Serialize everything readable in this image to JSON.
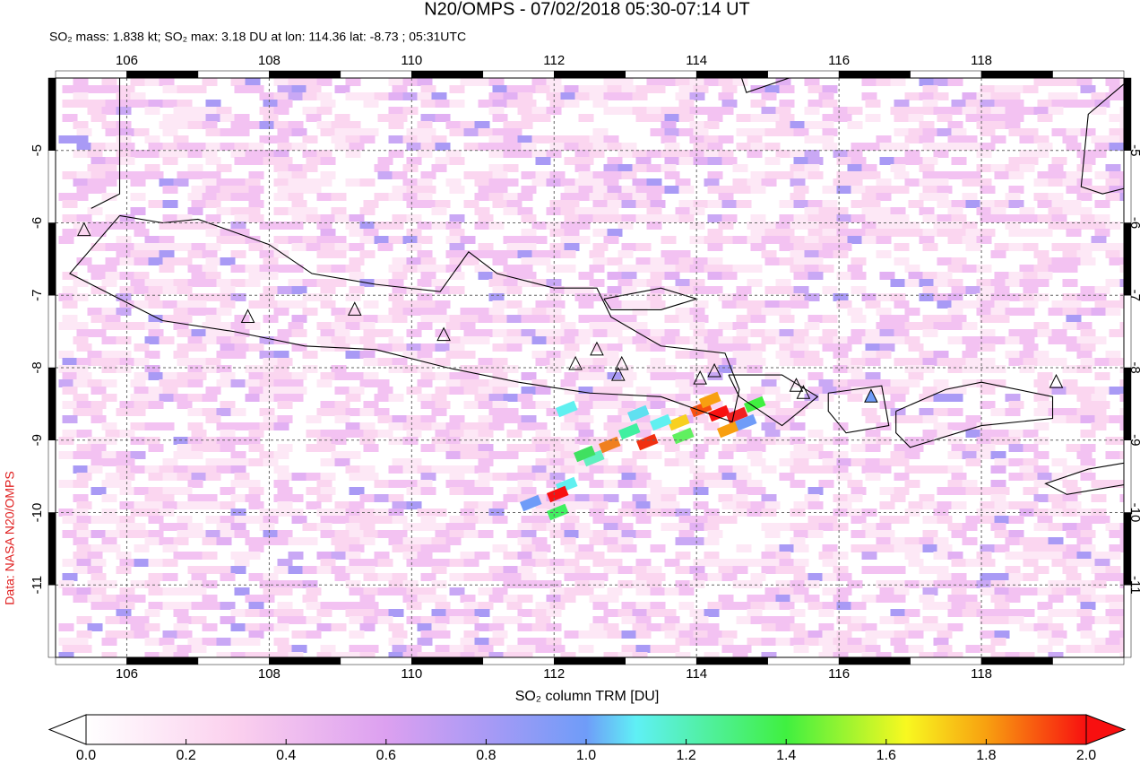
{
  "chart_data": {
    "type": "map",
    "title": "N20/OMPS - 07/02/2018 05:30-07:14 UT",
    "subtitle": "SO₂ mass: 1.838 kt; SO₂ max: 3.18 DU at lon: 114.36 lat: -8.73 ; 05:31UTC",
    "source_label": "Data: NASA N20/OMPS",
    "colorbar_label": "SO₂ column TRM [DU]",
    "xlim": [
      105,
      120
    ],
    "ylim": [
      -12,
      -4
    ],
    "xticks": [
      106,
      108,
      110,
      112,
      114,
      116,
      118
    ],
    "yticks": [
      -5,
      -6,
      -7,
      -8,
      -9,
      -10,
      -11
    ],
    "clim": [
      0,
      2
    ],
    "cticks": [
      {
        "value": 0,
        "label": "0.0"
      },
      {
        "value": 0.2,
        "label": "0.2"
      },
      {
        "value": 0.4,
        "label": "0.4"
      },
      {
        "value": 0.6,
        "label": "0.6"
      },
      {
        "value": 0.8,
        "label": "0.8"
      },
      {
        "value": 1,
        "label": "1.0"
      },
      {
        "value": 1.2,
        "label": "1.2"
      },
      {
        "value": 1.4,
        "label": "1.4"
      },
      {
        "value": 1.6,
        "label": "1.6"
      },
      {
        "value": 1.8,
        "label": "1.8"
      },
      {
        "value": 2,
        "label": "2.0"
      }
    ],
    "grid": true
  }
}
